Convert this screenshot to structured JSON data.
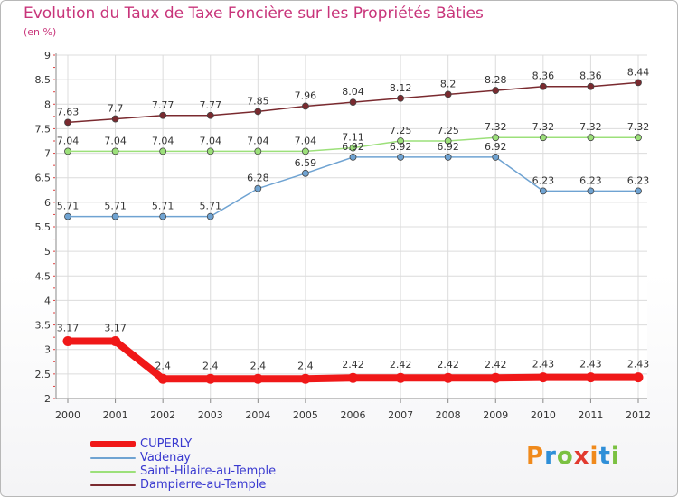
{
  "header": {
    "title": "Evolution du Taux de Taxe Foncière sur les Propriétés Bâties",
    "unit": "(en %)"
  },
  "chart_data": {
    "type": "line",
    "title": "Evolution du Taux de Taxe Foncière sur les Propriétés Bâties",
    "ylabel": "(en %)",
    "xlabel": "",
    "ylim": [
      2,
      9
    ],
    "yticks": [
      "2",
      "2.5",
      "3",
      "3.5",
      "4",
      "4.5",
      "5",
      "5.5",
      "6",
      "6.5",
      "7",
      "7.5",
      "8",
      "8.5",
      "9"
    ],
    "categories": [
      "2000",
      "2001",
      "2002",
      "2003",
      "2004",
      "2005",
      "2006",
      "2007",
      "2008",
      "2009",
      "2010",
      "2011",
      "2012"
    ],
    "grid": true,
    "series": [
      {
        "name": "Dampierre-au-Temple",
        "color": "#7a2a2f",
        "values": [
          7.63,
          7.7,
          7.77,
          7.77,
          7.85,
          7.96,
          8.04,
          8.12,
          8.2,
          8.28,
          8.36,
          8.36,
          8.44
        ],
        "labels": [
          "7.63",
          "7.7",
          "7.77",
          "7.77",
          "7.85",
          "7.96",
          "8.04",
          "8.12",
          "8.2",
          "8.28",
          "8.36",
          "8.36",
          "8.44"
        ]
      },
      {
        "name": "Saint-Hilaire-au-Temple",
        "color": "#9ce07a",
        "values": [
          7.04,
          7.04,
          7.04,
          7.04,
          7.04,
          7.04,
          7.11,
          7.25,
          7.25,
          7.32,
          7.32,
          7.32,
          7.32
        ],
        "labels": [
          "7.04",
          "7.04",
          "7.04",
          "7.04",
          "7.04",
          "7.04",
          "7.11",
          "7.25",
          "7.25",
          "7.32",
          "7.32",
          "7.32",
          "7.32"
        ]
      },
      {
        "name": "Vadenay",
        "color": "#6fa3d2",
        "values": [
          5.71,
          5.71,
          5.71,
          5.71,
          6.28,
          6.59,
          6.92,
          6.92,
          6.92,
          6.92,
          6.23,
          6.23,
          6.23
        ],
        "labels": [
          "5.71",
          "5.71",
          "5.71",
          "5.71",
          "6.28",
          "6.59",
          "6.92",
          "6.92",
          "6.92",
          "6.92",
          "6.23",
          "6.23",
          "6.23"
        ]
      },
      {
        "name": "CUPERLY",
        "color": "#f01818",
        "values": [
          3.17,
          3.17,
          2.4,
          2.4,
          2.4,
          2.4,
          2.42,
          2.42,
          2.42,
          2.42,
          2.43,
          2.43,
          2.43
        ],
        "labels": [
          "3.17",
          "3.17",
          "2.4",
          "2.4",
          "2.4",
          "2.4",
          "2.42",
          "2.42",
          "2.42",
          "2.42",
          "2.43",
          "2.43",
          "2.43"
        ]
      }
    ]
  },
  "legend": {
    "items": [
      {
        "label": "CUPERLY",
        "color": "#f01818"
      },
      {
        "label": "Vadenay",
        "color": "#6fa3d2"
      },
      {
        "label": "Saint-Hilaire-au-Temple",
        "color": "#9ce07a"
      },
      {
        "label": "Dampierre-au-Temple",
        "color": "#7a2a2f"
      }
    ],
    "text_color": "#3a3ad0"
  },
  "logo": {
    "text": "Proxiti",
    "colors": [
      "#f08a1c",
      "#2f8fd8",
      "#7bc142",
      "#e23a2f",
      "#f08a1c",
      "#2f8fd8",
      "#7bc142"
    ]
  }
}
